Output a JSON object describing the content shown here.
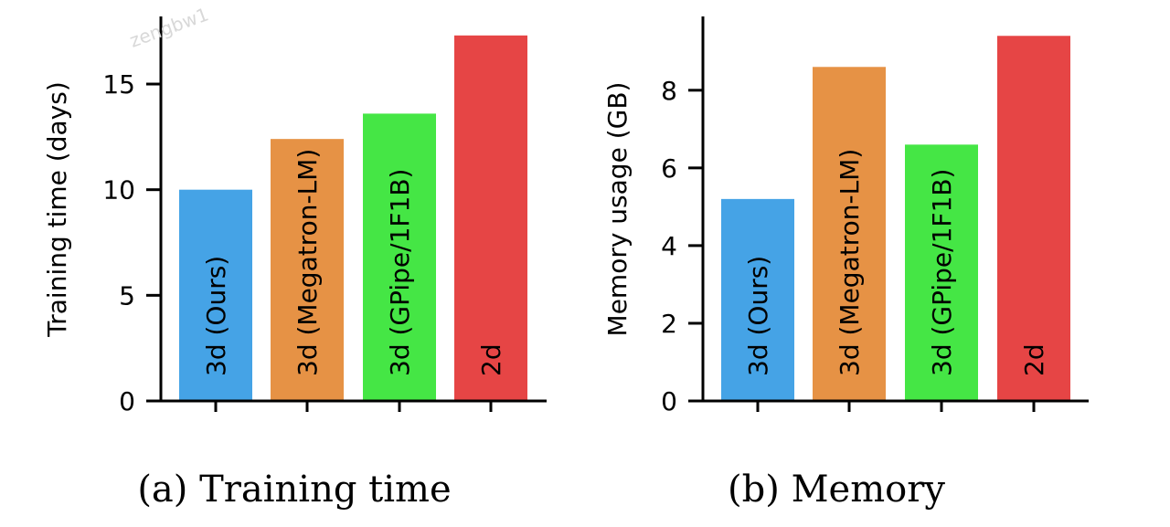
{
  "chart_data": [
    {
      "type": "bar",
      "caption": "(a) Training time",
      "ylabel": "Training time (days)",
      "xlabel": "",
      "categories": [
        "3d (Ours)",
        "3d (Megatron-LM)",
        "3d (GPipe/1F1B)",
        "2d"
      ],
      "values": [
        10.0,
        12.4,
        13.6,
        17.3
      ],
      "colors": [
        "#45a3e6",
        "#e69245",
        "#45e645",
        "#e64545"
      ],
      "ylim": [
        0,
        18.2
      ],
      "yticks": [
        0,
        5,
        10,
        15
      ],
      "grid": false
    },
    {
      "type": "bar",
      "caption": "(b) Memory",
      "ylabel": "Memory usage (GB)",
      "xlabel": "",
      "categories": [
        "3d (Ours)",
        "3d (Megatron-LM)",
        "3d (GPipe/1F1B)",
        "2d"
      ],
      "values": [
        5.2,
        8.6,
        6.6,
        9.4
      ],
      "colors": [
        "#45a3e6",
        "#e69245",
        "#45e645",
        "#e64545"
      ],
      "ylim": [
        0,
        9.9
      ],
      "yticks": [
        0,
        2,
        4,
        6,
        8
      ],
      "grid": false
    }
  ],
  "watermark": "zengbw1"
}
